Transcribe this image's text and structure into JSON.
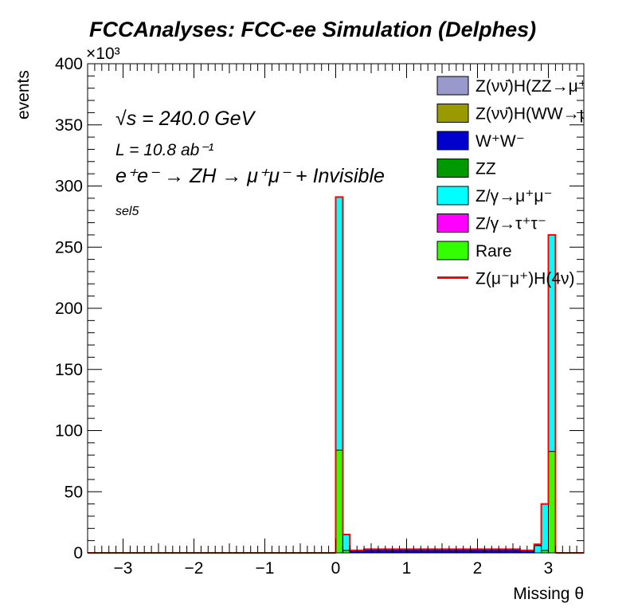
{
  "chart_data": {
    "type": "bar",
    "title": "FCCAnalyses: FCC-ee Simulation (Delphes)",
    "xlabel": "Missing θ",
    "ylabel": "events",
    "y_multiplier": "×10³",
    "xlim": [
      -3.5,
      3.5
    ],
    "ylim": [
      0,
      400
    ],
    "x_ticks": [
      -3,
      -2,
      -1,
      0,
      1,
      2,
      3
    ],
    "x_tick_labels": [
      "−3",
      "−2",
      "−1",
      "0",
      "1",
      "2",
      "3"
    ],
    "y_ticks": [
      0,
      50,
      100,
      150,
      200,
      250,
      300,
      350,
      400
    ],
    "annotations": {
      "sqrt_s": "√s = 240.0 GeV",
      "lumi": "L = 10.8 ab⁻¹",
      "process": "e⁺e⁻ → ZH → μ⁺μ⁻ + Invisible",
      "selection": "sel5"
    },
    "bin_width": 0.1,
    "bins": [
      {
        "x_low": 0.0,
        "stacks": {
          "Rare": 84,
          "Z/γ→μ⁺μ⁻": 207
        },
        "signal": 291
      },
      {
        "x_low": 0.1,
        "stacks": {
          "Rare": 2,
          "Z/γ→μ⁺μ⁻": 13
        },
        "signal": 15
      },
      {
        "x_low": 0.2,
        "stacks": {
          "W⁺W⁻": 2
        },
        "signal": 2
      },
      {
        "x_low": 0.3,
        "stacks": {
          "W⁺W⁻": 2
        },
        "signal": 2
      },
      {
        "x_low": 0.4,
        "stacks": {
          "W⁺W⁻": 3
        },
        "signal": 3
      },
      {
        "x_low": 0.5,
        "stacks": {
          "W⁺W⁻": 3
        },
        "signal": 3
      },
      {
        "x_low": 0.6,
        "stacks": {
          "W⁺W⁻": 3
        },
        "signal": 3
      },
      {
        "x_low": 0.7,
        "stacks": {
          "W⁺W⁻": 3
        },
        "signal": 3
      },
      {
        "x_low": 0.8,
        "stacks": {
          "W⁺W⁻": 3
        },
        "signal": 3
      },
      {
        "x_low": 0.9,
        "stacks": {
          "W⁺W⁻": 3
        },
        "signal": 3
      },
      {
        "x_low": 1.0,
        "stacks": {
          "W⁺W⁻": 3
        },
        "signal": 3
      },
      {
        "x_low": 1.1,
        "stacks": {
          "W⁺W⁻": 3
        },
        "signal": 3
      },
      {
        "x_low": 1.2,
        "stacks": {
          "W⁺W⁻": 3
        },
        "signal": 3
      },
      {
        "x_low": 1.3,
        "stacks": {
          "W⁺W⁻": 3
        },
        "signal": 3
      },
      {
        "x_low": 1.4,
        "stacks": {
          "W⁺W⁻": 3
        },
        "signal": 3
      },
      {
        "x_low": 1.5,
        "stacks": {
          "W⁺W⁻": 3
        },
        "signal": 3
      },
      {
        "x_low": 1.6,
        "stacks": {
          "W⁺W⁻": 3
        },
        "signal": 3
      },
      {
        "x_low": 1.7,
        "stacks": {
          "W⁺W⁻": 3
        },
        "signal": 3
      },
      {
        "x_low": 1.8,
        "stacks": {
          "W⁺W⁻": 3
        },
        "signal": 3
      },
      {
        "x_low": 1.9,
        "stacks": {
          "W⁺W⁻": 3
        },
        "signal": 3
      },
      {
        "x_low": 2.0,
        "stacks": {
          "W⁺W⁻": 3
        },
        "signal": 3
      },
      {
        "x_low": 2.1,
        "stacks": {
          "W⁺W⁻": 3
        },
        "signal": 3
      },
      {
        "x_low": 2.2,
        "stacks": {
          "W⁺W⁻": 3
        },
        "signal": 3
      },
      {
        "x_low": 2.3,
        "stacks": {
          "W⁺W⁻": 3
        },
        "signal": 3
      },
      {
        "x_low": 2.4,
        "stacks": {
          "W⁺W⁻": 3
        },
        "signal": 3
      },
      {
        "x_low": 2.5,
        "stacks": {
          "W⁺W⁻": 3
        },
        "signal": 3
      },
      {
        "x_low": 2.6,
        "stacks": {
          "W⁺W⁻": 2
        },
        "signal": 2
      },
      {
        "x_low": 2.7,
        "stacks": {
          "W⁺W⁻": 2
        },
        "signal": 2
      },
      {
        "x_low": 2.8,
        "stacks": {
          "W⁺W⁻": 1,
          "Z/γ→μ⁺μ⁻": 6
        },
        "signal": 7
      },
      {
        "x_low": 2.9,
        "stacks": {
          "Rare": 2,
          "Z/γ→μ⁺μ⁻": 38
        },
        "signal": 40
      },
      {
        "x_low": 3.0,
        "stacks": {
          "Rare": 83,
          "Z/γ→μ⁺μ⁻": 177
        },
        "signal": 260
      }
    ],
    "legend": [
      {
        "label": "Z(νν̄)H(ZZ→μ⁺μ⁻ν⁺",
        "kind": "fill",
        "color": "#9999cc"
      },
      {
        "label": "Z(νν̄)H(WW→μ⁺νμ",
        "kind": "fill",
        "color": "#999900"
      },
      {
        "label": "W⁺W⁻",
        "kind": "fill",
        "color": "#0000cc"
      },
      {
        "label": "ZZ",
        "kind": "fill",
        "color": "#009900"
      },
      {
        "label": "Z/γ→μ⁺μ⁻",
        "kind": "fill",
        "color": "#00ffff"
      },
      {
        "label": "Z/γ→τ⁺τ⁻",
        "kind": "fill",
        "color": "#ff00ff"
      },
      {
        "label": "Rare",
        "kind": "fill",
        "color": "#33ff00"
      },
      {
        "label": "Z(μ⁻μ⁺)H(4ν)",
        "kind": "line",
        "color": "#ff0000"
      }
    ],
    "stack_order": [
      "Rare",
      "Z/γ→τ⁺τ⁻",
      "Z/γ→μ⁺μ⁻",
      "ZZ",
      "W⁺W⁻",
      "Z(νν̄)H(WW→μ⁺νμ",
      "Z(νν̄)H(ZZ→μ⁺μ⁻ν⁺"
    ],
    "stack_colors": {
      "Rare": "#33ff00",
      "Z/γ→τ⁺τ⁻": "#ff00ff",
      "Z/γ→μ⁺μ⁻": "#00ffff",
      "ZZ": "#009900",
      "W⁺W⁻": "#0000cc",
      "Z(νν̄)H(WW→μ⁺νμ": "#999900",
      "Z(νν̄)H(ZZ→μ⁺μ⁻ν⁺": "#9999cc"
    },
    "signal_color": "#ff0000"
  }
}
